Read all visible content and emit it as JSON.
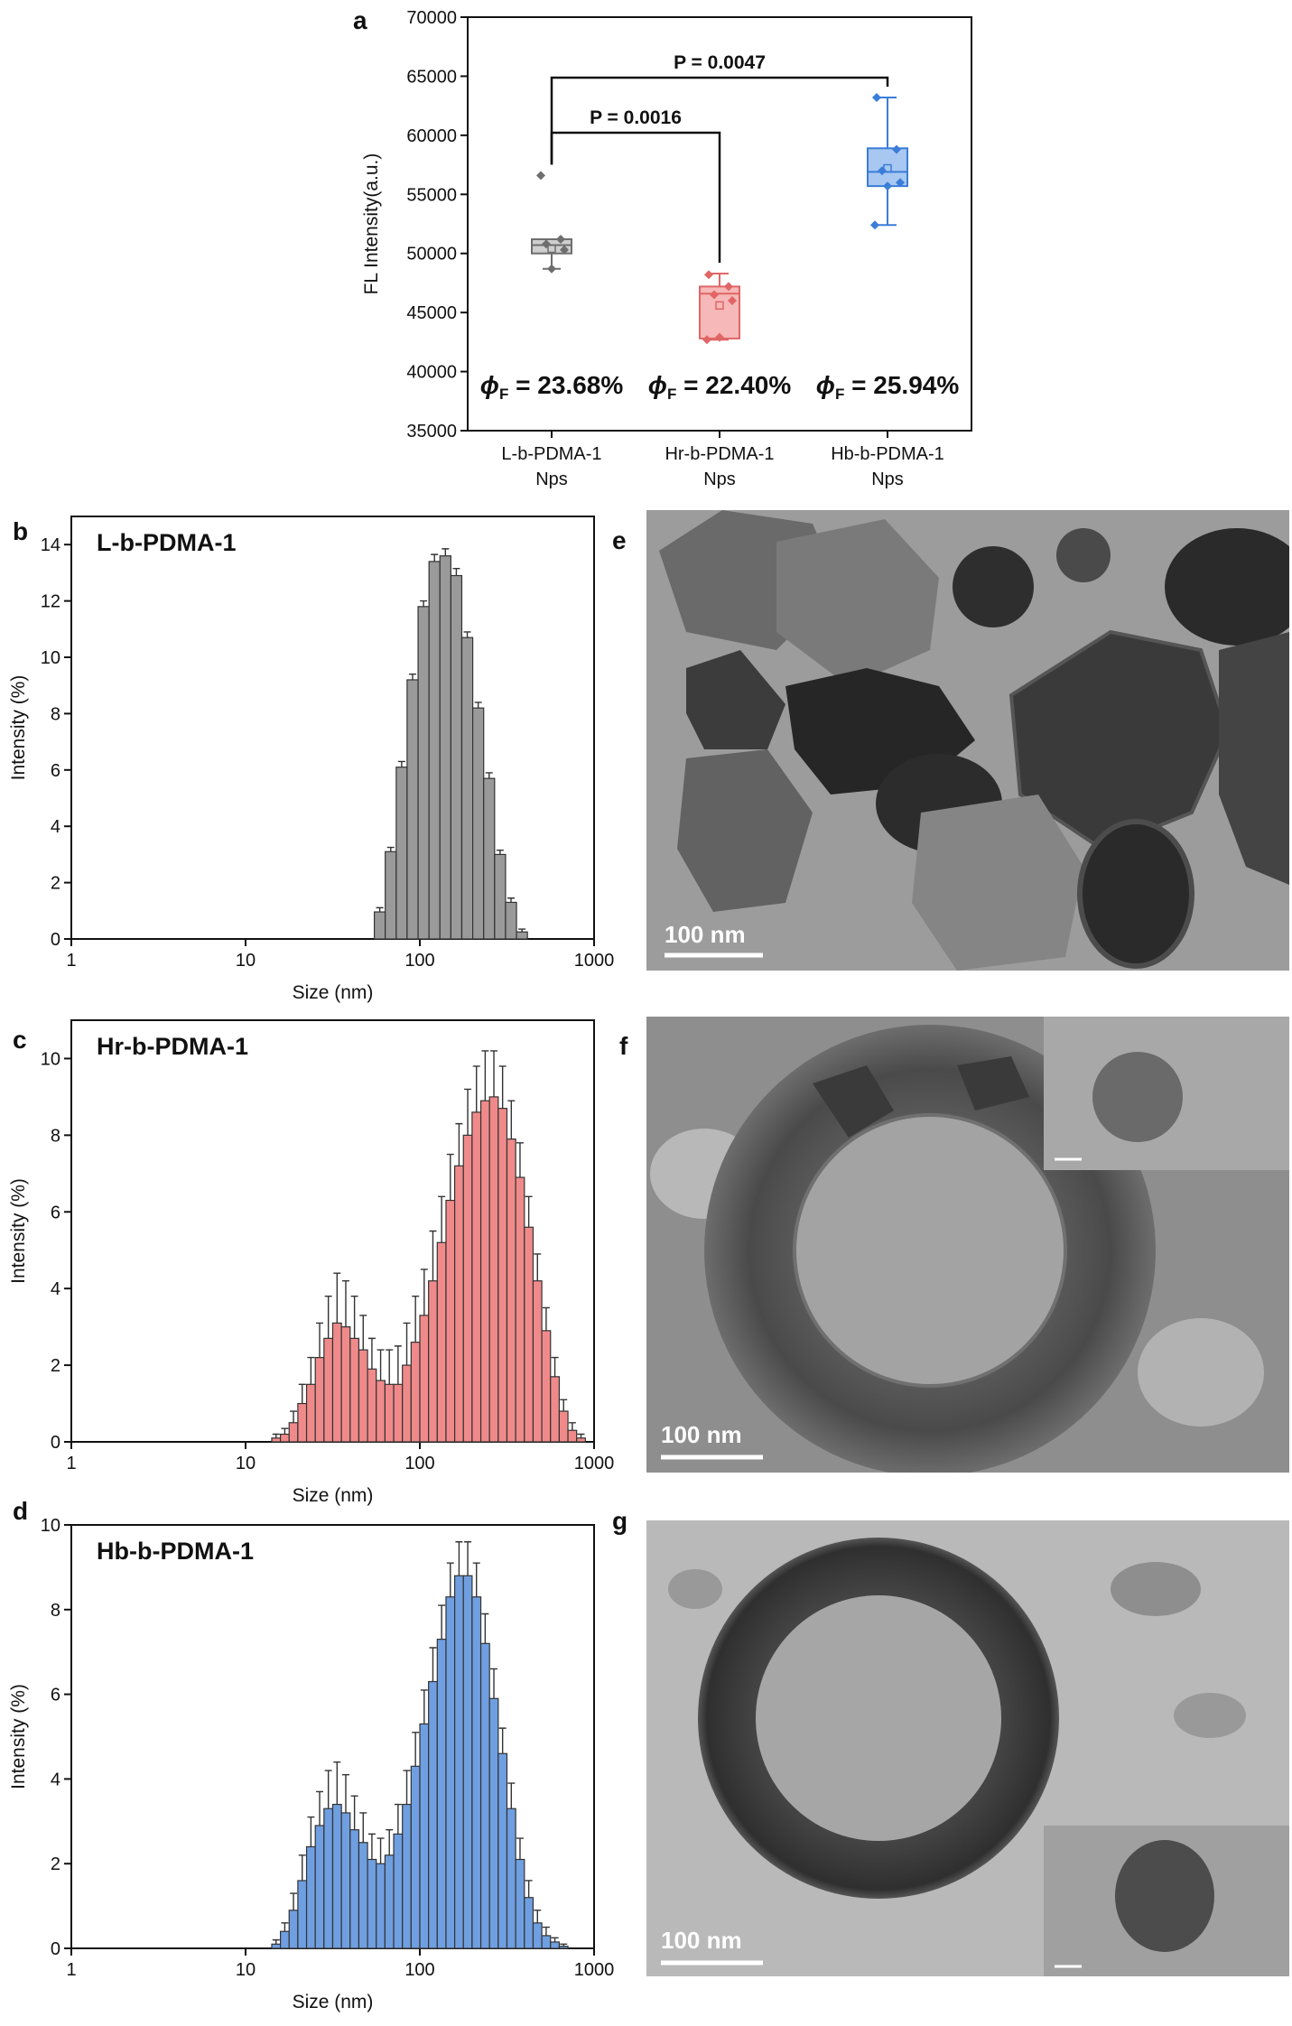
{
  "chart_data": [
    {
      "type": "box",
      "panel": "a",
      "ylabel": "FL Intensity(a.u.)",
      "categories": [
        "L-b-PDMA-1\nNps",
        "Hr-b-PDMA-1\nNps",
        "Hb-b-PDMA-1\nNps"
      ],
      "boxes": [
        {
          "color": "#6e6e6e",
          "fill": "#cfcfcf",
          "whisker_low": 48700,
          "q1": 50000,
          "median": 50700,
          "q3": 51200,
          "whisker_high": 51200,
          "mean": 50400,
          "points": [
            56600,
            51200,
            50800,
            50300,
            48700
          ]
        },
        {
          "color": "#e06666",
          "fill": "#f6b8b8",
          "whisker_low": 42700,
          "q1": 42800,
          "median": 46600,
          "q3": 47200,
          "whisker_high": 48300,
          "mean": 45600,
          "points": [
            48200,
            47200,
            46500,
            46000,
            42900,
            42700
          ]
        },
        {
          "color": "#3b7dd8",
          "fill": "#a8c8f2",
          "whisker_low": 52400,
          "q1": 55700,
          "median": 56900,
          "q3": 58900,
          "whisker_high": 63200,
          "mean": 57200,
          "points": [
            63200,
            58800,
            57000,
            56000,
            55700,
            52400
          ]
        }
      ],
      "brackets": [
        {
          "text": "P = 0.0016",
          "between": [
            0,
            1
          ]
        },
        {
          "text": "P = 0.0047",
          "between": [
            0,
            2
          ]
        }
      ],
      "phi_labels": [
        {
          "symbol": "ϕ",
          "subscript": "F",
          "text": " = 23.68%"
        },
        {
          "symbol": "ϕ",
          "subscript": "F",
          "text": " = 22.40%"
        },
        {
          "symbol": "ϕ",
          "subscript": "F",
          "text": " = 25.94%"
        }
      ],
      "ylim": [
        35000,
        70000
      ],
      "yticks": [
        35000,
        40000,
        45000,
        50000,
        55000,
        60000,
        65000,
        70000
      ]
    },
    {
      "type": "histogram",
      "panel": "b",
      "title": "L-b-PDMA-1",
      "xlabel": "Size (nm)",
      "ylabel": "Intensity (%)",
      "xscale": "log",
      "xlim": [
        1,
        1000
      ],
      "xticks": [
        1,
        10,
        100,
        1000
      ],
      "ylim": [
        0,
        15
      ],
      "yticks": [
        0,
        2,
        4,
        6,
        8,
        10,
        12,
        14
      ],
      "color": "#9a9a9a",
      "bins": [
        54.8,
        63.3,
        73.2,
        84.5,
        97.7,
        112.9,
        130.4,
        150.7,
        174.1,
        201.2,
        232.5,
        268.6,
        310.4,
        358.7,
        414.5
      ],
      "values": [
        0.96,
        3.1,
        6.1,
        9.2,
        11.8,
        13.4,
        13.6,
        12.9,
        10.7,
        8.2,
        5.7,
        3.0,
        1.3,
        0.25
      ],
      "errors": [
        0.15,
        0.15,
        0.2,
        0.2,
        0.2,
        0.25,
        0.25,
        0.25,
        0.2,
        0.2,
        0.2,
        0.15,
        0.15,
        0.1
      ]
    },
    {
      "type": "histogram",
      "panel": "c",
      "title": "Hr-b-PDMA-1",
      "xlabel": "Size (nm)",
      "ylabel": "Intensity (%)",
      "xscale": "log",
      "xlim": [
        1,
        1000
      ],
      "xticks": [
        1,
        10,
        100,
        1000
      ],
      "ylim": [
        0,
        11
      ],
      "yticks": [
        0,
        2,
        4,
        6,
        8,
        10
      ],
      "color": "#f08a8a",
      "bins": [
        14.13,
        15.85,
        17.78,
        19.95,
        22.39,
        25.12,
        28.18,
        31.62,
        35.48,
        39.81,
        44.67,
        50.12,
        56.23,
        63.1,
        70.79,
        79.43,
        89.13,
        100,
        112.2,
        125.9,
        141.3,
        158.5,
        177.8,
        199.5,
        223.9,
        251.2,
        281.8,
        316.2,
        354.8,
        398.1,
        446.7,
        501.2,
        562.3,
        631.0,
        707.9,
        794.3,
        891.3
      ],
      "values": [
        0.1,
        0.2,
        0.5,
        1.0,
        1.5,
        2.2,
        2.7,
        3.1,
        3.0,
        2.7,
        2.4,
        1.9,
        1.6,
        1.5,
        1.5,
        2.0,
        2.6,
        3.3,
        4.2,
        5.2,
        6.3,
        7.2,
        8.0,
        8.6,
        8.9,
        9.0,
        8.7,
        7.9,
        6.9,
        5.6,
        4.2,
        2.9,
        1.7,
        0.8,
        0.3,
        0.1
      ],
      "errors": [
        0.1,
        0.15,
        0.3,
        0.5,
        0.7,
        0.9,
        1.1,
        1.3,
        1.2,
        1.1,
        0.9,
        0.8,
        0.8,
        0.9,
        1.0,
        1.1,
        1.2,
        1.2,
        1.3,
        1.2,
        1.2,
        1.1,
        1.2,
        1.2,
        1.3,
        1.2,
        1.1,
        1.0,
        0.9,
        0.8,
        0.7,
        0.6,
        0.5,
        0.3,
        0.2,
        0.1
      ]
    },
    {
      "type": "histogram",
      "panel": "d",
      "title": "Hb-b-PDMA-1",
      "xlabel": "Size (nm)",
      "ylabel": "Intensity (%)",
      "xscale": "log",
      "xlim": [
        1,
        1000
      ],
      "xticks": [
        1,
        10,
        100,
        1000
      ],
      "ylim": [
        0,
        10
      ],
      "yticks": [
        0,
        2,
        4,
        6,
        8,
        10
      ],
      "color": "#6f9fe0",
      "bins": [
        14.13,
        15.85,
        17.78,
        19.95,
        22.39,
        25.12,
        28.18,
        31.62,
        35.48,
        39.81,
        44.67,
        50.12,
        56.23,
        63.1,
        70.79,
        79.43,
        89.13,
        100,
        112.2,
        125.9,
        141.3,
        158.5,
        177.8,
        199.5,
        223.9,
        251.2,
        281.8,
        316.2,
        354.8,
        398.1,
        446.7,
        501.2,
        562.3,
        631.0,
        707.9
      ],
      "values": [
        0.1,
        0.4,
        0.9,
        1.6,
        2.4,
        2.9,
        3.3,
        3.4,
        3.2,
        2.8,
        2.5,
        2.1,
        2.0,
        2.2,
        2.7,
        3.4,
        4.3,
        5.3,
        6.3,
        7.3,
        8.3,
        8.8,
        8.8,
        8.3,
        7.2,
        5.9,
        4.6,
        3.3,
        2.1,
        1.2,
        0.6,
        0.3,
        0.15,
        0.05
      ],
      "errors": [
        0.1,
        0.2,
        0.4,
        0.6,
        0.7,
        0.8,
        0.9,
        1.0,
        0.9,
        0.8,
        0.7,
        0.6,
        0.6,
        0.6,
        0.7,
        0.8,
        0.8,
        0.8,
        0.8,
        0.8,
        0.8,
        0.8,
        0.8,
        0.8,
        0.7,
        0.7,
        0.6,
        0.6,
        0.5,
        0.4,
        0.3,
        0.2,
        0.1,
        0.05
      ]
    }
  ],
  "images": [
    {
      "panel": "e",
      "scale_bar": "100 nm"
    },
    {
      "panel": "f",
      "scale_bar": "100 nm"
    },
    {
      "panel": "g",
      "scale_bar": "100 nm"
    }
  ]
}
